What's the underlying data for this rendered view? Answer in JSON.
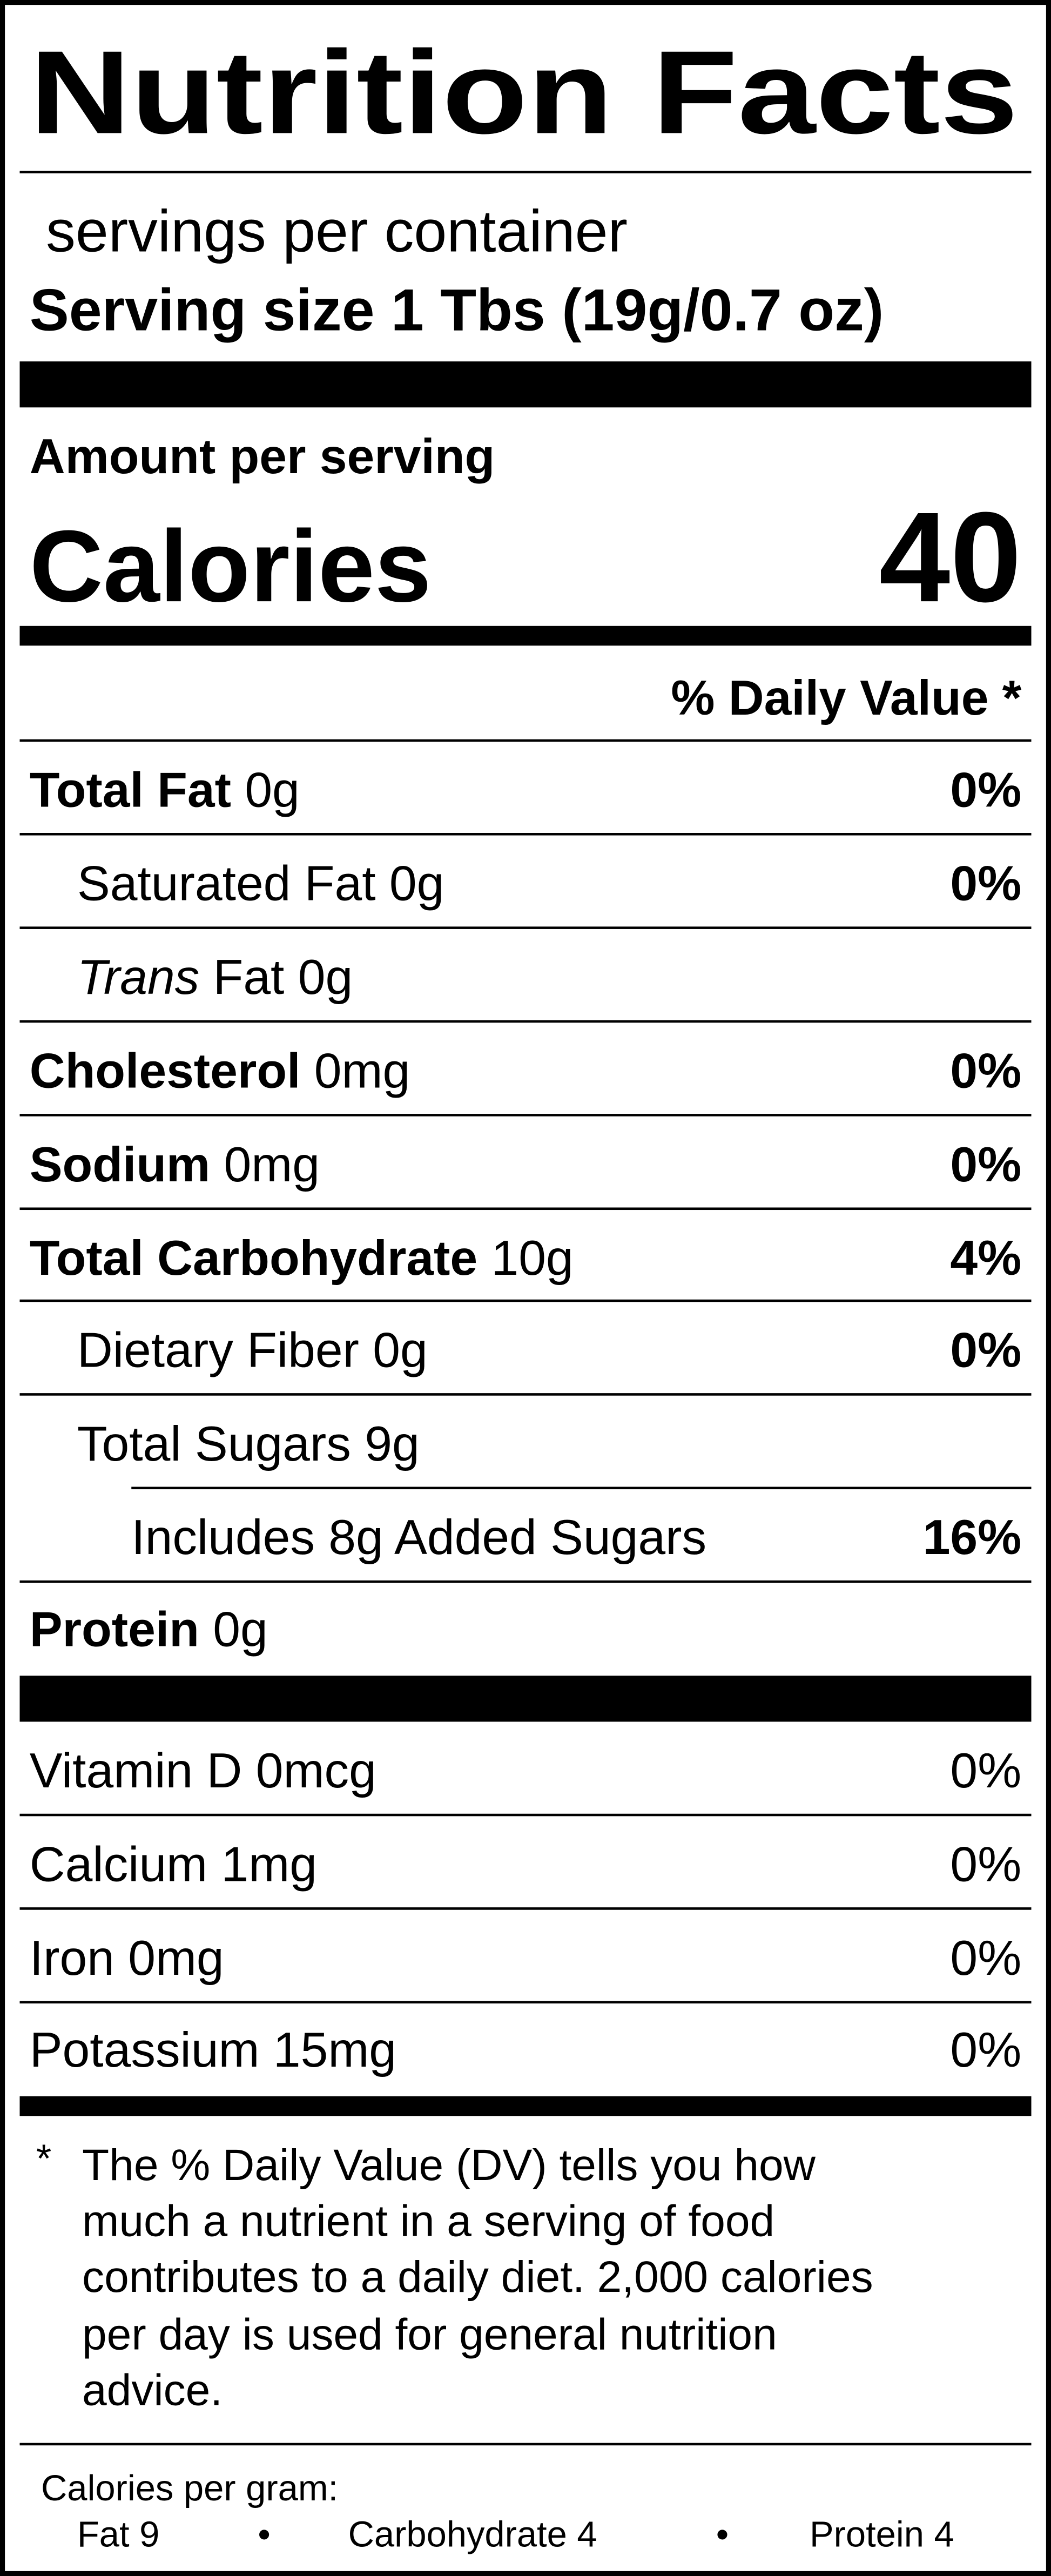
{
  "label": {
    "title": "Nutrition Facts",
    "servings": "servings per container",
    "serving_size_label": "Serving size",
    "serving_size": "1 Tbs (19g/0.7 oz)",
    "amount_per_serving": "Amount per serving",
    "calories_label": "Calories",
    "calories": "40",
    "dv_header": "% Daily Value *",
    "nutrients": [
      {
        "name": "Total Fat",
        "amount": "0g",
        "dv": "0%"
      },
      {
        "name": "Saturated Fat",
        "amount": "0g",
        "dv": "0%"
      },
      {
        "name_italic": "Trans",
        "name": "Fat",
        "amount": "0g"
      },
      {
        "name": "Cholesterol",
        "amount": "0mg",
        "dv": "0%"
      },
      {
        "name": "Sodium",
        "amount": "0mg",
        "dv": "0%"
      },
      {
        "name": "Total Carbohydrate",
        "amount": "10g",
        "dv": "4%"
      },
      {
        "name": "Dietary Fiber",
        "amount": "0g",
        "dv": "0%"
      },
      {
        "name": "Total Sugars",
        "amount": "9g"
      },
      {
        "name": "Includes 8g Added Sugars",
        "dv": "16%"
      },
      {
        "name": "Protein",
        "amount": "0g"
      }
    ],
    "micronutrients": [
      {
        "name": "Vitamin D",
        "amount": "0mcg",
        "dv": "0%"
      },
      {
        "name": "Calcium",
        "amount": "1mg",
        "dv": "0%"
      },
      {
        "name": "Iron",
        "amount": "0mg",
        "dv": "0%"
      },
      {
        "name": "Potassium",
        "amount": "15mg",
        "dv": "0%"
      }
    ],
    "footnote_mark": "*",
    "footnote": [
      "The % Daily Value (DV) tells you how",
      "much a nutrient in a serving of food",
      "contributes to a daily diet. 2,000 calories",
      "per day is used for general nutrition",
      "advice."
    ],
    "calories_per_gram": "Calories per gram:",
    "per_gram": [
      "Fat 9",
      "Carbohydrate 4",
      "Protein 4"
    ],
    "separator": "•"
  }
}
